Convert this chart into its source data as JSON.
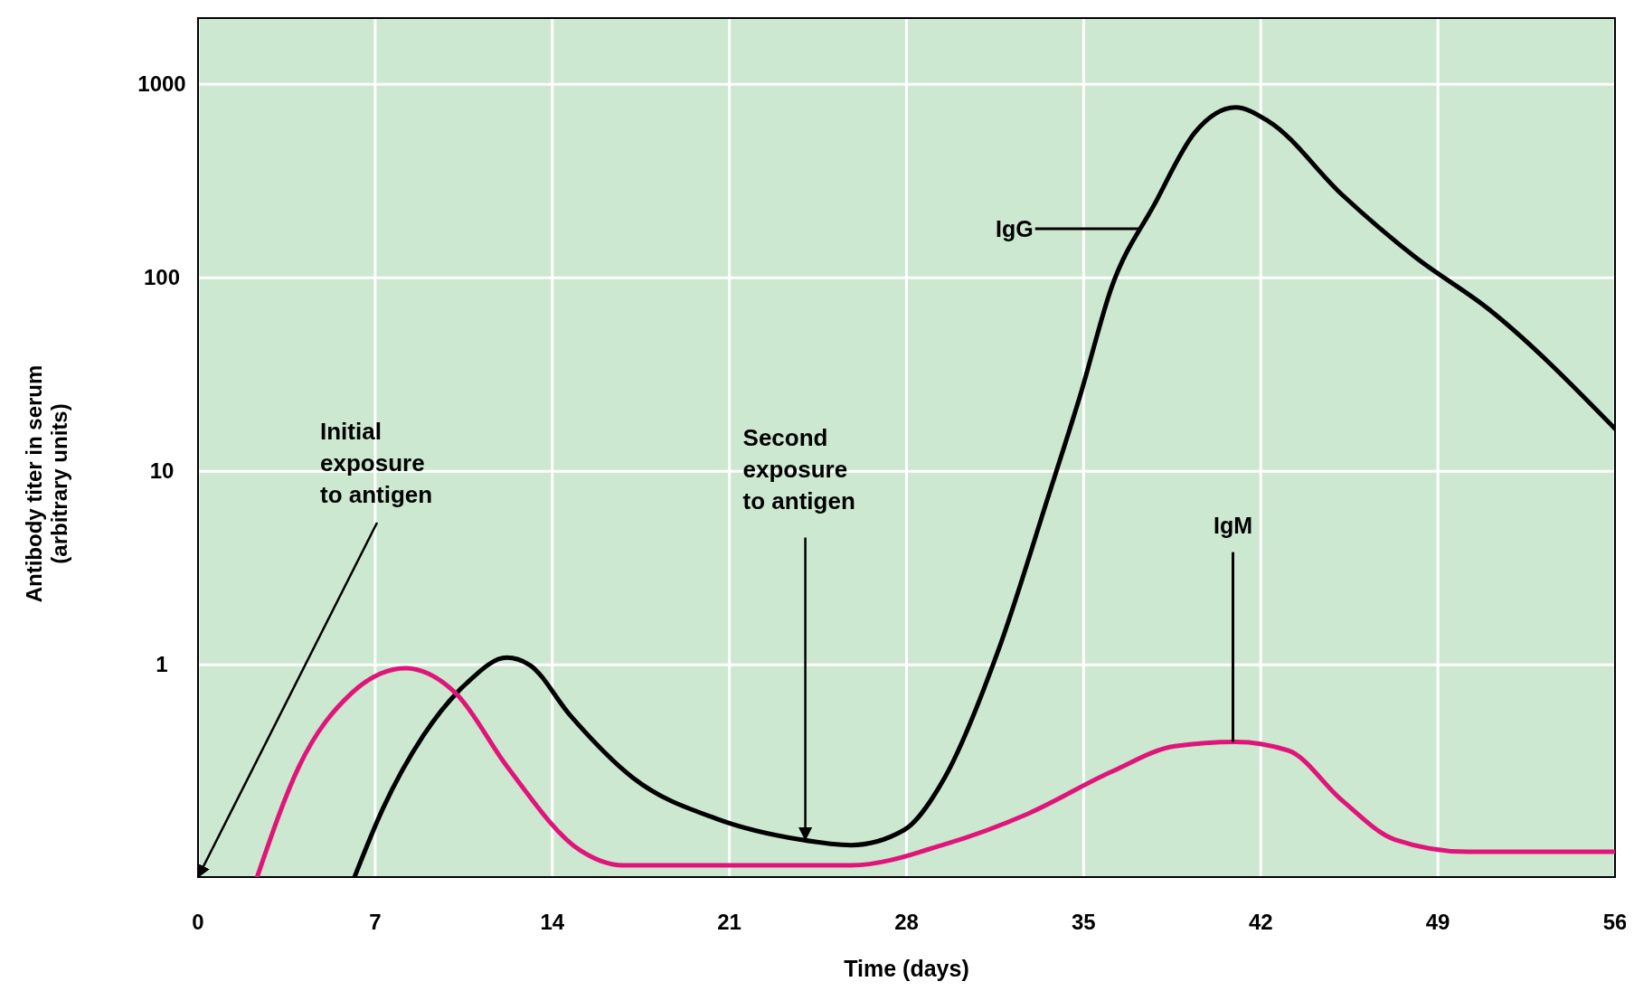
{
  "chart_data": {
    "type": "line",
    "xlabel": "Time (days)",
    "ylabel": "Antibody titer in serum\n(arbitrary units)",
    "log": "y",
    "grid": true,
    "marker": "none",
    "line_style": "solid",
    "xlim": [
      0,
      56
    ],
    "xticks": [
      0,
      7,
      14,
      21,
      28,
      35,
      42,
      49,
      56
    ],
    "ylim": [
      0.08,
      2200
    ],
    "yticks": [
      1,
      10,
      100,
      1000
    ],
    "series": [
      {
        "name": "IgG",
        "color": "#000000",
        "x": [
          6.2,
          7.3,
          8.9,
          10.6,
          12.2,
          13.1,
          14.7,
          17.2,
          20.5,
          23.8,
          25.8,
          27.9,
          29.5,
          31.6,
          33.6,
          34.9,
          36.1,
          37.8,
          39.4,
          41.0,
          42.3,
          45.2,
          48.1,
          51.0,
          56
        ],
        "values": [
          0.081,
          0.18,
          0.43,
          0.8,
          1.09,
          1.0,
          0.55,
          0.26,
          0.16,
          0.125,
          0.117,
          0.14,
          0.26,
          1.16,
          7.4,
          25.6,
          89,
          240,
          565,
          760,
          645,
          270,
          128,
          69,
          16.6
        ]
      },
      {
        "name": "IgM",
        "color": "#e0157a",
        "x": [
          2.35,
          4.0,
          6.05,
          8.2,
          10.2,
          12.2,
          15.1,
          16.8,
          21.3,
          25.8,
          29.5,
          32.8,
          36.1,
          38.6,
          41.0,
          43.1,
          45.2,
          47.3,
          50.2,
          56
        ],
        "values": [
          0.081,
          0.3,
          0.71,
          0.96,
          0.71,
          0.3,
          0.11,
          0.092,
          0.092,
          0.092,
          0.118,
          0.17,
          0.28,
          0.38,
          0.4,
          0.36,
          0.2,
          0.125,
          0.108,
          0.108
        ]
      }
    ],
    "annotations": [
      "Initial\nexposure\nto antigen",
      {
        "text": "Second\nexposure\nto antigen",
        "x": 24,
        "y": 0.125
      }
    ]
  }
}
